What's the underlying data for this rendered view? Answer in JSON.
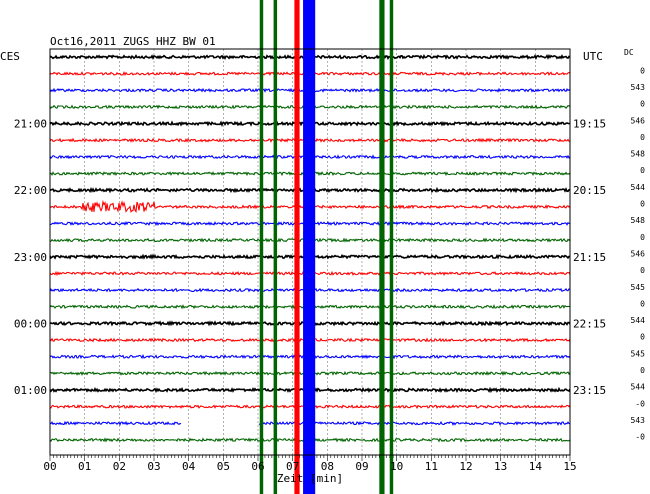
{
  "header": {
    "title": "Oct16,2011   ZUGS HHZ BW 01",
    "left_timezone": "CES",
    "right_timezone": "UTC",
    "dc_label": "DC"
  },
  "colors": {
    "trace_cycle": [
      "#000000",
      "#ff0000",
      "#0000ff",
      "#006400"
    ],
    "grid": "#808080",
    "saturated_blue": "#0000ff",
    "saturated_green": "#006400",
    "saturated_red": "#ff0000"
  },
  "chart_data": {
    "type": "helicorder",
    "station": "ZUGS",
    "channel": "HHZ",
    "network": "BW",
    "location": "01",
    "date": "Oct16,2011",
    "xlabel": "Zeit [min]",
    "xlim": [
      0,
      15
    ],
    "x_ticks": [
      "00",
      "01",
      "02",
      "03",
      "04",
      "05",
      "06",
      "07",
      "08",
      "09",
      "10",
      "11",
      "12",
      "13",
      "14",
      "15"
    ],
    "row_count": 24,
    "row_minutes": 15,
    "left_hour_labels": [
      {
        "row": 4,
        "label": "21:00"
      },
      {
        "row": 8,
        "label": "22:00"
      },
      {
        "row": 12,
        "label": "23:00"
      },
      {
        "row": 16,
        "label": "00:00"
      },
      {
        "row": 20,
        "label": "01:00"
      }
    ],
    "right_hour_labels": [
      {
        "row": 4,
        "label": "19:15"
      },
      {
        "row": 8,
        "label": "20:15"
      },
      {
        "row": 12,
        "label": "21:15"
      },
      {
        "row": 16,
        "label": "22:15"
      },
      {
        "row": 20,
        "label": "23:15"
      }
    ],
    "dc_offsets": [
      "0",
      "543",
      "0",
      "546",
      "0",
      "548",
      "0",
      "544",
      "0",
      "548",
      "0",
      "546",
      "0",
      "545",
      "0",
      "544",
      "0",
      "545",
      "0",
      "544",
      "-0",
      "543",
      "-0"
    ],
    "saturated_bands": [
      {
        "from_min": 6.05,
        "to_min": 6.15,
        "color": "saturated_green"
      },
      {
        "from_min": 6.45,
        "to_min": 6.55,
        "color": "saturated_green"
      },
      {
        "from_min": 7.05,
        "to_min": 7.2,
        "color": "saturated_red"
      },
      {
        "from_min": 7.3,
        "to_min": 7.65,
        "color": "saturated_blue"
      },
      {
        "from_min": 9.5,
        "to_min": 9.65,
        "color": "saturated_green"
      },
      {
        "from_min": 9.8,
        "to_min": 9.9,
        "color": "saturated_green"
      }
    ],
    "events": [
      {
        "row": 9,
        "from_min": 0.9,
        "to_min": 3.0,
        "note": "burst"
      }
    ],
    "gaps": [
      {
        "row": 22,
        "from_min": 3.8,
        "to_min": 6.0
      }
    ]
  }
}
